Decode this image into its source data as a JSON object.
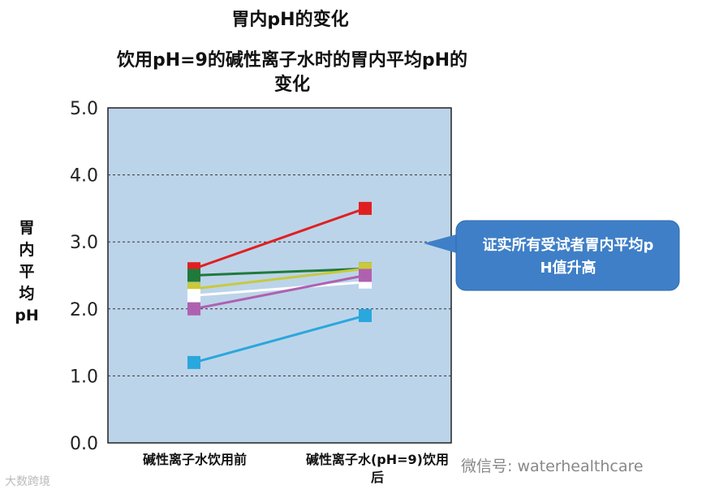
{
  "header": {
    "title": "胃内pH的变化",
    "subtitle": "饮用pH=9的碱性离子水时的胃内平均pH的变化"
  },
  "callout": {
    "text": "证实所有受试者胃内平均pH值升高",
    "color": "#3f7fc7"
  },
  "watermark": {
    "left": "大数跨境",
    "right": "微信号: waterhealthcare"
  },
  "chart_data": {
    "type": "line",
    "title": "饮用pH=9的碱性离子水时的胃内平均pH的变化",
    "ylabel": "胃内平均pH",
    "xlabel": "",
    "categories": [
      "碱性离子水饮用前",
      "碱性离子水(pH=9)饮用后"
    ],
    "ylim": [
      0,
      5
    ],
    "yticks": [
      "0.0",
      "1.0",
      "2.0",
      "3.0",
      "4.0",
      "5.0"
    ],
    "grid": true,
    "plot_background": "#bcd4ea",
    "series": [
      {
        "color": "#e02020",
        "values": [
          2.6,
          3.5
        ]
      },
      {
        "color": "#1f7a3a",
        "values": [
          2.5,
          2.6
        ]
      },
      {
        "color": "#c9c93a",
        "values": [
          2.3,
          2.6
        ]
      },
      {
        "color": "#ffffff",
        "values": [
          2.2,
          2.4
        ]
      },
      {
        "color": "#b060b0",
        "values": [
          2.0,
          2.5
        ]
      },
      {
        "color": "#2aa7dd",
        "values": [
          1.2,
          1.9
        ]
      }
    ]
  }
}
